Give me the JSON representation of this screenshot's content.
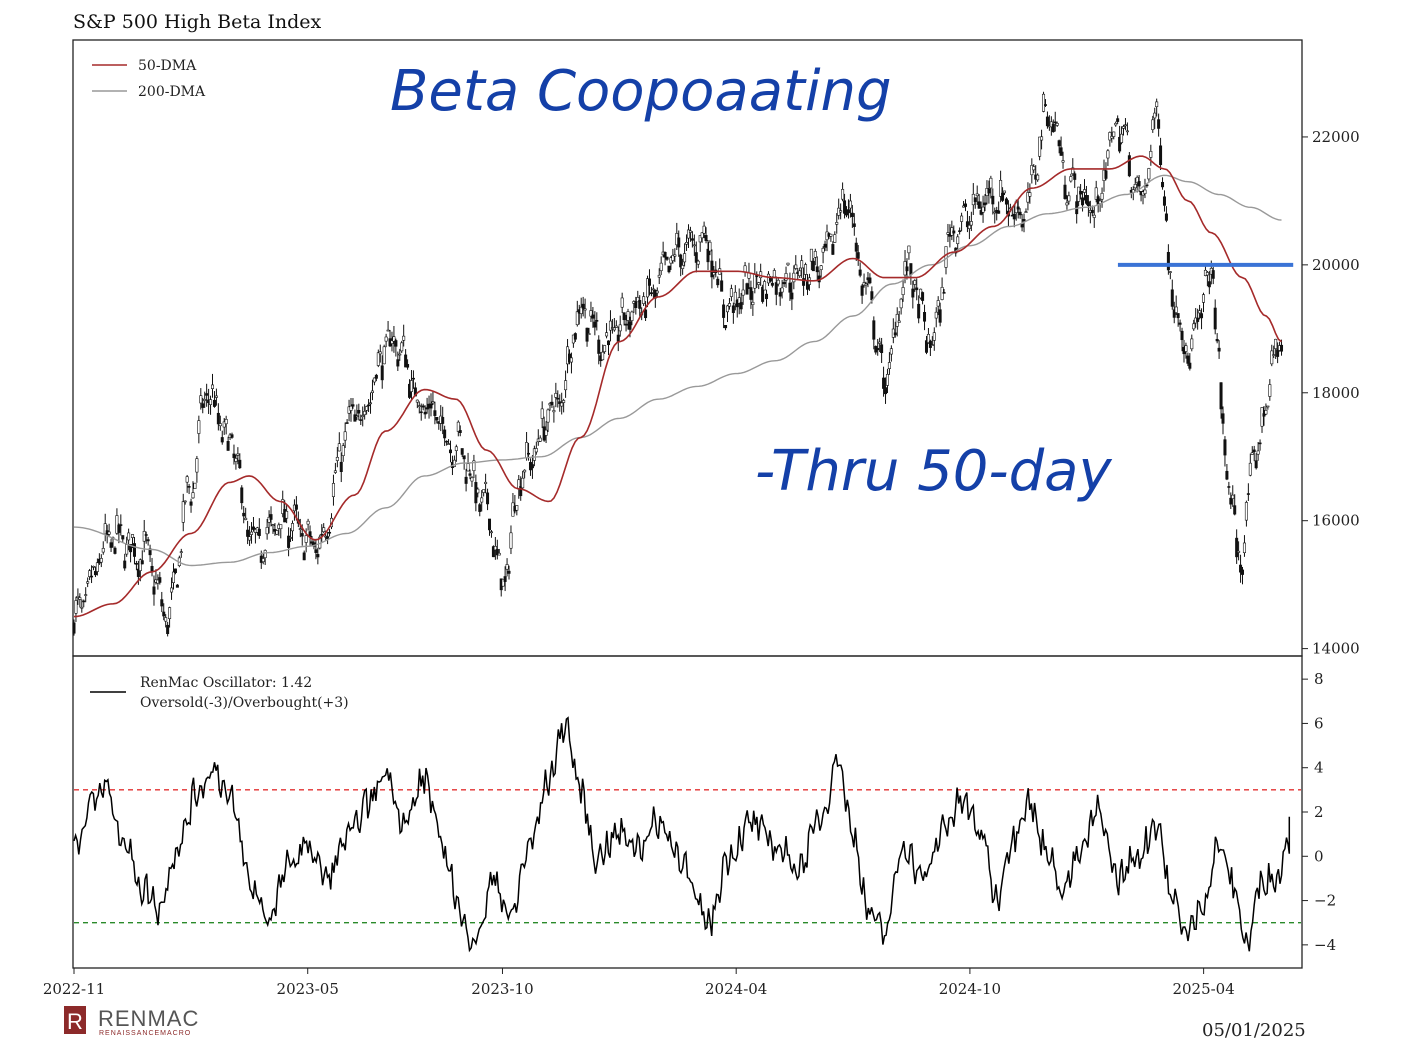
{
  "chart_data": [
    {
      "type": "line",
      "title": "S&P 500 High Beta Index",
      "series": [
        {
          "name": "50-DMA",
          "color": "#a52a2a"
        },
        {
          "name": "200-DMA",
          "color": "#999999"
        }
      ],
      "x_ticks": [
        "2022-11",
        "2023-05",
        "2023-10",
        "2024-04",
        "2024-10",
        "2025-04"
      ],
      "x_tick_t": [
        0,
        6,
        11,
        17,
        23,
        29
      ],
      "y_ticks": [
        14000,
        16000,
        18000,
        20000,
        22000
      ],
      "ylim": [
        13900,
        23500
      ],
      "grid": false,
      "legend": "top-left",
      "price_anchors": [
        [
          0,
          14500
        ],
        [
          1.0,
          15700
        ],
        [
          1.8,
          15500
        ],
        [
          2.4,
          14500
        ],
        [
          3.0,
          16500
        ],
        [
          3.4,
          18000
        ],
        [
          4.0,
          17200
        ],
        [
          4.6,
          15600
        ],
        [
          5.4,
          16000
        ],
        [
          6.2,
          15600
        ],
        [
          7.2,
          17600
        ],
        [
          8.2,
          18800
        ],
        [
          9.0,
          17800
        ],
        [
          9.8,
          17200
        ],
        [
          10.6,
          16200
        ],
        [
          11.0,
          15000
        ],
        [
          11.5,
          16800
        ],
        [
          12.4,
          17800
        ],
        [
          13.0,
          19300
        ],
        [
          13.6,
          18800
        ],
        [
          14.6,
          19400
        ],
        [
          15.6,
          20200
        ],
        [
          16.2,
          20400
        ],
        [
          16.8,
          19300
        ],
        [
          17.4,
          19700
        ],
        [
          18.3,
          19800
        ],
        [
          19.2,
          20000
        ],
        [
          19.8,
          21000
        ],
        [
          20.4,
          19500
        ],
        [
          20.8,
          18200
        ],
        [
          21.4,
          19900
        ],
        [
          22.0,
          18800
        ],
        [
          22.6,
          20600
        ],
        [
          23.6,
          21100
        ],
        [
          24.4,
          20800
        ],
        [
          25.0,
          22400
        ],
        [
          25.6,
          21200
        ],
        [
          26.2,
          20900
        ],
        [
          26.8,
          22200
        ],
        [
          27.4,
          21000
        ],
        [
          27.8,
          22300
        ],
        [
          28.2,
          19600
        ],
        [
          28.6,
          18600
        ],
        [
          29.2,
          19800
        ],
        [
          29.6,
          16800
        ],
        [
          29.9,
          15400
        ],
        [
          30.4,
          17200
        ],
        [
          30.8,
          18500
        ],
        [
          31.0,
          18800
        ]
      ],
      "ma50_anchors": [
        [
          0,
          14500
        ],
        [
          1.0,
          14700
        ],
        [
          2.0,
          15200
        ],
        [
          3.0,
          15800
        ],
        [
          4.0,
          16600
        ],
        [
          4.5,
          16700
        ],
        [
          5.3,
          16300
        ],
        [
          6.2,
          15700
        ],
        [
          7.2,
          16400
        ],
        [
          8.0,
          17400
        ],
        [
          9.0,
          18050
        ],
        [
          9.8,
          17900
        ],
        [
          10.6,
          17100
        ],
        [
          11.4,
          16500
        ],
        [
          12.2,
          16300
        ],
        [
          13.0,
          17300
        ],
        [
          14.0,
          18800
        ],
        [
          15.0,
          19500
        ],
        [
          16.0,
          19900
        ],
        [
          17.0,
          19900
        ],
        [
          18.0,
          19800
        ],
        [
          19.0,
          19750
        ],
        [
          20.0,
          20100
        ],
        [
          20.8,
          19800
        ],
        [
          21.6,
          19800
        ],
        [
          22.6,
          20200
        ],
        [
          23.6,
          20600
        ],
        [
          24.6,
          21200
        ],
        [
          25.6,
          21500
        ],
        [
          26.6,
          21500
        ],
        [
          27.4,
          21700
        ],
        [
          28.0,
          21500
        ],
        [
          28.6,
          21000
        ],
        [
          29.2,
          20500
        ],
        [
          30.0,
          19800
        ],
        [
          30.6,
          19200
        ],
        [
          31.0,
          18800
        ]
      ],
      "ma200_anchors": [
        [
          0,
          15900
        ],
        [
          2.0,
          15550
        ],
        [
          3.0,
          15300
        ],
        [
          4.0,
          15350
        ],
        [
          5.0,
          15500
        ],
        [
          6.0,
          15600
        ],
        [
          7.0,
          15800
        ],
        [
          8.0,
          16200
        ],
        [
          9.0,
          16700
        ],
        [
          10.0,
          16900
        ],
        [
          11.0,
          16950
        ],
        [
          12.0,
          17000
        ],
        [
          13.0,
          17300
        ],
        [
          14.0,
          17600
        ],
        [
          15.0,
          17900
        ],
        [
          16.0,
          18100
        ],
        [
          17.0,
          18300
        ],
        [
          18.0,
          18500
        ],
        [
          19.0,
          18800
        ],
        [
          20.0,
          19200
        ],
        [
          21.0,
          19700
        ],
        [
          22.0,
          20000
        ],
        [
          23.0,
          20300
        ],
        [
          24.0,
          20600
        ],
        [
          25.0,
          20800
        ],
        [
          26.0,
          20900
        ],
        [
          27.0,
          21100
        ],
        [
          28.0,
          21400
        ],
        [
          28.6,
          21300
        ],
        [
          29.4,
          21100
        ],
        [
          30.2,
          20900
        ],
        [
          31.0,
          20700
        ]
      ],
      "annotations": [
        "Beta Coopoaating",
        "-Thru 50-day"
      ],
      "horizontal_line": {
        "y": 20000,
        "t_start": 26.8,
        "t_end": 31.3,
        "color": "#3a73d6"
      }
    },
    {
      "type": "line",
      "series": [
        {
          "name": "RenMac Oscillator: 1.42",
          "color": "#000000"
        }
      ],
      "legend_line2": "Oversold(-3)/Overbought(+3)",
      "y_ticks": [
        -4,
        -2,
        0,
        2,
        4,
        6,
        8
      ],
      "ylim": [
        -5,
        9
      ],
      "overbought": 3,
      "oversold": -3,
      "overbought_color": "#e33030",
      "oversold_color": "#2a8a2a",
      "osc_anchors": [
        [
          0,
          0.5
        ],
        [
          0.5,
          2.5
        ],
        [
          0.8,
          3.2
        ],
        [
          1.2,
          1.0
        ],
        [
          1.8,
          -1.5
        ],
        [
          2.2,
          -2.3
        ],
        [
          2.6,
          0.2
        ],
        [
          3.2,
          3.0
        ],
        [
          3.6,
          4.0
        ],
        [
          4.0,
          2.5
        ],
        [
          4.6,
          -1.5
        ],
        [
          5.0,
          -2.8
        ],
        [
          5.5,
          -0.5
        ],
        [
          6.0,
          0.5
        ],
        [
          6.5,
          -1.0
        ],
        [
          7.0,
          0.8
        ],
        [
          7.6,
          2.5
        ],
        [
          8.0,
          3.8
        ],
        [
          8.5,
          1.5
        ],
        [
          9.0,
          3.5
        ],
        [
          9.5,
          0.2
        ],
        [
          10.0,
          -3.0
        ],
        [
          10.3,
          -3.8
        ],
        [
          10.8,
          -1.0
        ],
        [
          11.2,
          -2.8
        ],
        [
          11.7,
          0.5
        ],
        [
          12.2,
          3.5
        ],
        [
          12.6,
          6.0
        ],
        [
          13.0,
          3.0
        ],
        [
          13.4,
          0.0
        ],
        [
          14.0,
          1.0
        ],
        [
          14.5,
          0.5
        ],
        [
          15.0,
          1.5
        ],
        [
          15.6,
          0.0
        ],
        [
          16.0,
          -2.2
        ],
        [
          16.3,
          -3.0
        ],
        [
          16.8,
          0.0
        ],
        [
          17.4,
          1.5
        ],
        [
          18.0,
          0.5
        ],
        [
          18.6,
          -0.5
        ],
        [
          19.2,
          1.8
        ],
        [
          19.6,
          4.5
        ],
        [
          20.0,
          1.0
        ],
        [
          20.4,
          -2.5
        ],
        [
          20.8,
          -3.5
        ],
        [
          21.3,
          0.5
        ],
        [
          21.8,
          -1.0
        ],
        [
          22.4,
          1.5
        ],
        [
          22.8,
          2.5
        ],
        [
          23.3,
          1.0
        ],
        [
          23.7,
          -2.0
        ],
        [
          24.0,
          0.5
        ],
        [
          24.5,
          2.5
        ],
        [
          24.9,
          0.5
        ],
        [
          25.4,
          -1.5
        ],
        [
          25.8,
          0.0
        ],
        [
          26.3,
          2.0
        ],
        [
          26.8,
          -1.0
        ],
        [
          27.3,
          0.0
        ],
        [
          27.8,
          1.5
        ],
        [
          28.2,
          -2.0
        ],
        [
          28.6,
          -3.5
        ],
        [
          29.0,
          -2.0
        ],
        [
          29.4,
          0.5
        ],
        [
          29.8,
          -1.5
        ],
        [
          30.1,
          -4.0
        ],
        [
          30.5,
          -1.0
        ],
        [
          30.9,
          -1.0
        ],
        [
          31.2,
          1.0
        ],
        [
          31.5,
          1.42
        ]
      ]
    }
  ],
  "footer": {
    "logo_letter": "R",
    "logo_text": "RENMAC",
    "logo_subtext": "RENAISSANCEMACRO",
    "date": "05/01/2025"
  }
}
